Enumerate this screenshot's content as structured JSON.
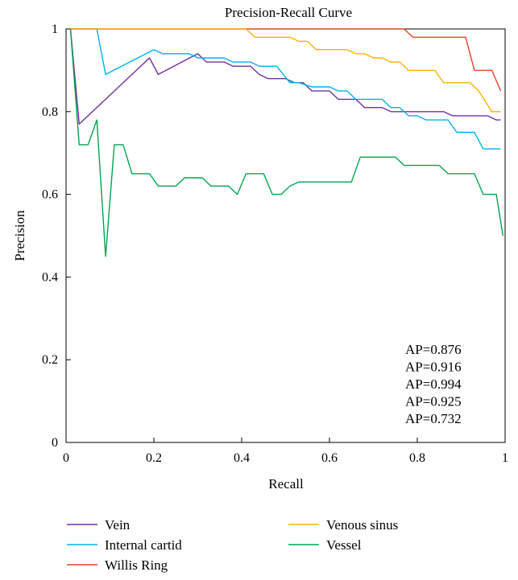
{
  "chart_data": {
    "type": "line",
    "title": "Precision-Recall Curve",
    "xlabel": "Recall",
    "ylabel": "Precision",
    "xlim": [
      0,
      1
    ],
    "ylim": [
      0,
      1
    ],
    "x_ticks": [
      "0",
      "0.2",
      "0.4",
      "0.6",
      "0.8",
      "1"
    ],
    "y_ticks": [
      "0",
      "0.2",
      "0.4",
      "0.6",
      "0.8",
      "1"
    ],
    "grid": false,
    "legend_position": "bottom",
    "annotations": [
      "AP=0.876",
      "AP=0.916",
      "AP=0.994",
      "AP=0.925",
      "AP=0.732"
    ],
    "series": [
      {
        "name": "Vein",
        "color": "#7030A0",
        "points": [
          [
            0.01,
            1.0
          ],
          [
            0.03,
            0.77
          ],
          [
            0.19,
            0.93
          ],
          [
            0.21,
            0.89
          ],
          [
            0.3,
            0.94
          ],
          [
            0.32,
            0.92
          ],
          [
            0.36,
            0.92
          ],
          [
            0.38,
            0.91
          ],
          [
            0.42,
            0.91
          ],
          [
            0.44,
            0.89
          ],
          [
            0.46,
            0.88
          ],
          [
            0.5,
            0.88
          ],
          [
            0.52,
            0.87
          ],
          [
            0.54,
            0.87
          ],
          [
            0.56,
            0.85
          ],
          [
            0.6,
            0.85
          ],
          [
            0.62,
            0.83
          ],
          [
            0.66,
            0.83
          ],
          [
            0.68,
            0.81
          ],
          [
            0.72,
            0.81
          ],
          [
            0.74,
            0.8
          ],
          [
            0.86,
            0.8
          ],
          [
            0.88,
            0.79
          ],
          [
            0.96,
            0.79
          ],
          [
            0.98,
            0.78
          ],
          [
            0.99,
            0.78
          ]
        ]
      },
      {
        "name": "Internal cartid",
        "color": "#00B0F0",
        "points": [
          [
            0.01,
            1.0
          ],
          [
            0.07,
            1.0
          ],
          [
            0.09,
            0.89
          ],
          [
            0.2,
            0.95
          ],
          [
            0.22,
            0.94
          ],
          [
            0.28,
            0.94
          ],
          [
            0.3,
            0.93
          ],
          [
            0.36,
            0.93
          ],
          [
            0.38,
            0.92
          ],
          [
            0.42,
            0.92
          ],
          [
            0.44,
            0.91
          ],
          [
            0.48,
            0.91
          ],
          [
            0.51,
            0.87
          ],
          [
            0.53,
            0.87
          ],
          [
            0.56,
            0.86
          ],
          [
            0.6,
            0.86
          ],
          [
            0.62,
            0.85
          ],
          [
            0.64,
            0.85
          ],
          [
            0.66,
            0.83
          ],
          [
            0.72,
            0.83
          ],
          [
            0.74,
            0.81
          ],
          [
            0.76,
            0.81
          ],
          [
            0.78,
            0.79
          ],
          [
            0.8,
            0.79
          ],
          [
            0.82,
            0.78
          ],
          [
            0.87,
            0.78
          ],
          [
            0.89,
            0.75
          ],
          [
            0.93,
            0.75
          ],
          [
            0.95,
            0.71
          ],
          [
            0.99,
            0.71
          ]
        ]
      },
      {
        "name": "Willis Ring",
        "color": "#E8412C",
        "points": [
          [
            0.01,
            1.0
          ],
          [
            0.77,
            1.0
          ],
          [
            0.79,
            0.98
          ],
          [
            0.91,
            0.98
          ],
          [
            0.93,
            0.9
          ],
          [
            0.97,
            0.9
          ],
          [
            0.99,
            0.85
          ]
        ]
      },
      {
        "name": "Venous sinus",
        "color": "#FFB000",
        "points": [
          [
            0.01,
            1.0
          ],
          [
            0.41,
            1.0
          ],
          [
            0.43,
            0.98
          ],
          [
            0.51,
            0.98
          ],
          [
            0.53,
            0.97
          ],
          [
            0.55,
            0.97
          ],
          [
            0.57,
            0.95
          ],
          [
            0.64,
            0.95
          ],
          [
            0.66,
            0.94
          ],
          [
            0.68,
            0.94
          ],
          [
            0.7,
            0.93
          ],
          [
            0.72,
            0.93
          ],
          [
            0.74,
            0.92
          ],
          [
            0.76,
            0.92
          ],
          [
            0.78,
            0.9
          ],
          [
            0.84,
            0.9
          ],
          [
            0.86,
            0.87
          ],
          [
            0.92,
            0.87
          ],
          [
            0.94,
            0.85
          ],
          [
            0.97,
            0.8
          ],
          [
            0.99,
            0.8
          ]
        ]
      },
      {
        "name": "Vessel",
        "color": "#00A550",
        "points": [
          [
            0.01,
            1.0
          ],
          [
            0.03,
            0.72
          ],
          [
            0.05,
            0.72
          ],
          [
            0.07,
            0.78
          ],
          [
            0.09,
            0.45
          ],
          [
            0.11,
            0.72
          ],
          [
            0.13,
            0.72
          ],
          [
            0.15,
            0.65
          ],
          [
            0.19,
            0.65
          ],
          [
            0.21,
            0.62
          ],
          [
            0.25,
            0.62
          ],
          [
            0.27,
            0.64
          ],
          [
            0.31,
            0.64
          ],
          [
            0.33,
            0.62
          ],
          [
            0.37,
            0.62
          ],
          [
            0.39,
            0.6
          ],
          [
            0.41,
            0.65
          ],
          [
            0.45,
            0.65
          ],
          [
            0.47,
            0.6
          ],
          [
            0.49,
            0.6
          ],
          [
            0.51,
            0.62
          ],
          [
            0.53,
            0.63
          ],
          [
            0.65,
            0.63
          ],
          [
            0.67,
            0.69
          ],
          [
            0.75,
            0.69
          ],
          [
            0.77,
            0.67
          ],
          [
            0.85,
            0.67
          ],
          [
            0.87,
            0.65
          ],
          [
            0.93,
            0.65
          ],
          [
            0.95,
            0.6
          ],
          [
            0.98,
            0.6
          ],
          [
            0.995,
            0.5
          ]
        ]
      }
    ]
  }
}
